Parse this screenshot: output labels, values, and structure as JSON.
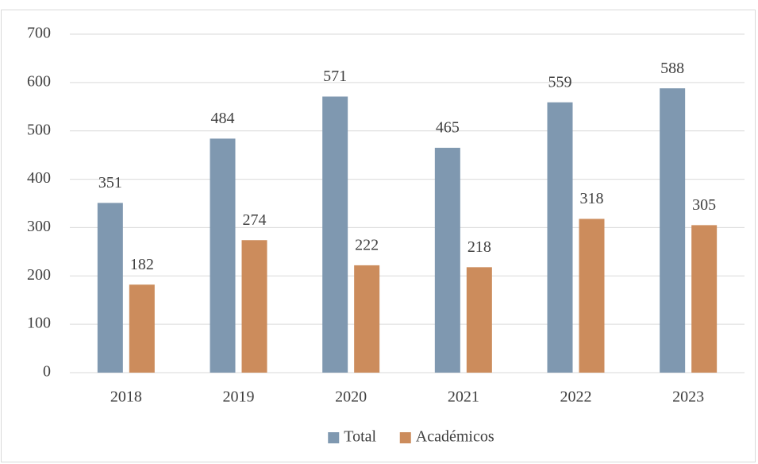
{
  "chart_data": {
    "type": "bar",
    "categories": [
      "2018",
      "2019",
      "2020",
      "2021",
      "2022",
      "2023"
    ],
    "series": [
      {
        "name": "Total",
        "color": "#7f98b0",
        "values": [
          351,
          484,
          571,
          465,
          559,
          588
        ]
      },
      {
        "name": "Académicos",
        "color": "#cc8c5c",
        "values": [
          182,
          274,
          222,
          218,
          318,
          305
        ]
      }
    ],
    "ylim": [
      0,
      700
    ],
    "yticks": [
      0,
      100,
      200,
      300,
      400,
      500,
      600,
      700
    ],
    "grid": true,
    "legend": "bottom",
    "data_labels": true
  }
}
